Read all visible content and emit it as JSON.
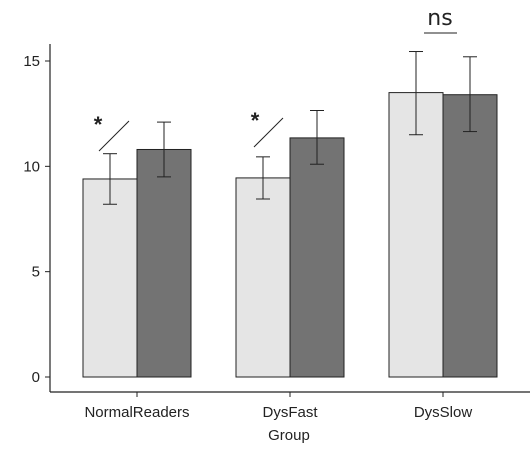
{
  "chart_data": {
    "type": "bar",
    "xlabel": "Group",
    "ylabel": "",
    "categories": [
      "NormalReaders",
      "DysFast",
      "DysSlow"
    ],
    "ylim": [
      0,
      15.5
    ],
    "yticks": [
      0,
      5,
      10,
      15
    ],
    "grid": false,
    "series": [
      {
        "color": "#e5e5e5",
        "values": [
          9.4,
          9.45,
          13.5
        ],
        "err_low": [
          8.2,
          8.45,
          11.5
        ],
        "err_high": [
          10.6,
          10.45,
          15.45
        ]
      },
      {
        "color": "#737373",
        "values": [
          10.8,
          11.35,
          13.4
        ],
        "err_low": [
          9.5,
          10.1,
          11.65
        ],
        "err_high": [
          12.1,
          12.65,
          15.2
        ]
      }
    ],
    "annotations": [
      "*",
      "*",
      "ns"
    ]
  }
}
